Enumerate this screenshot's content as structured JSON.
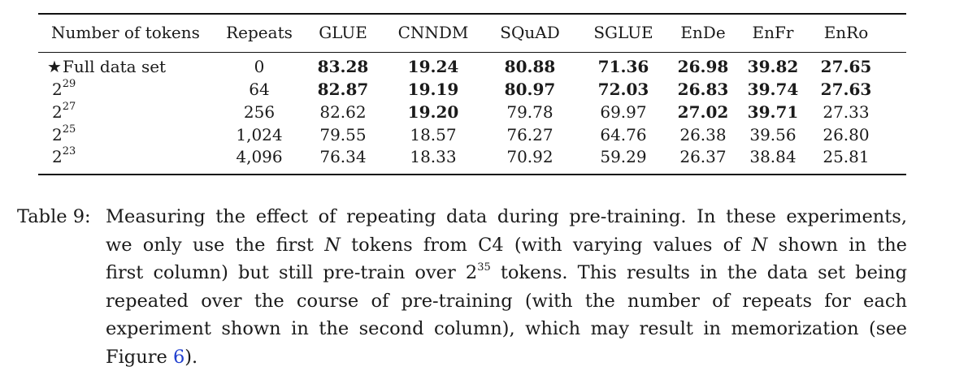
{
  "table": {
    "headers": [
      "Number of tokens",
      "Repeats",
      "GLUE",
      "CNNDM",
      "SQuAD",
      "SGLUE",
      "EnDe",
      "EnFr",
      "EnRo"
    ],
    "rows": [
      {
        "marker": "★",
        "label": "Full data set",
        "label_base": "",
        "label_exp": "",
        "cells": [
          "0",
          "83.28",
          "19.24",
          "80.88",
          "71.36",
          "26.98",
          "39.82",
          "27.65"
        ],
        "bold": [
          false,
          true,
          true,
          true,
          true,
          true,
          true,
          true
        ]
      },
      {
        "marker": "",
        "label": "",
        "label_base": "2",
        "label_exp": "29",
        "cells": [
          "64",
          "82.87",
          "19.19",
          "80.97",
          "72.03",
          "26.83",
          "39.74",
          "27.63"
        ],
        "bold": [
          false,
          true,
          true,
          true,
          true,
          true,
          true,
          true
        ]
      },
      {
        "marker": "",
        "label": "",
        "label_base": "2",
        "label_exp": "27",
        "cells": [
          "256",
          "82.62",
          "19.20",
          "79.78",
          "69.97",
          "27.02",
          "39.71",
          "27.33"
        ],
        "bold": [
          false,
          false,
          true,
          false,
          false,
          true,
          true,
          false
        ]
      },
      {
        "marker": "",
        "label": "",
        "label_base": "2",
        "label_exp": "25",
        "cells": [
          "1,024",
          "79.55",
          "18.57",
          "76.27",
          "64.76",
          "26.38",
          "39.56",
          "26.80"
        ],
        "bold": [
          false,
          false,
          false,
          false,
          false,
          false,
          false,
          false
        ]
      },
      {
        "marker": "",
        "label": "",
        "label_base": "2",
        "label_exp": "23",
        "cells": [
          "4,096",
          "76.34",
          "18.33",
          "70.92",
          "59.29",
          "26.37",
          "38.84",
          "25.81"
        ],
        "bold": [
          false,
          false,
          false,
          false,
          false,
          false,
          false,
          false
        ]
      }
    ]
  },
  "caption": {
    "label": "Table 9:",
    "line1": "Measuring the effect of repeating data during pre-training. In these experiments,",
    "line2_a": "we only use the first ",
    "line2_var1": "N",
    "line2_b": " tokens from C4 (with varying values of ",
    "line2_var2": "N",
    "line2_c": " shown in the",
    "line3_a": "first column) but still pre-train over 2",
    "line3_exp": "35",
    "line3_b": " tokens. This results in the data set being",
    "line4": "repeated over the course of pre-training (with the number of repeats for each",
    "line5": "experiment shown in the second column), which may result in memorization (see",
    "line6_a": "Figure ",
    "line6_link": "6",
    "line6_b": ")."
  }
}
